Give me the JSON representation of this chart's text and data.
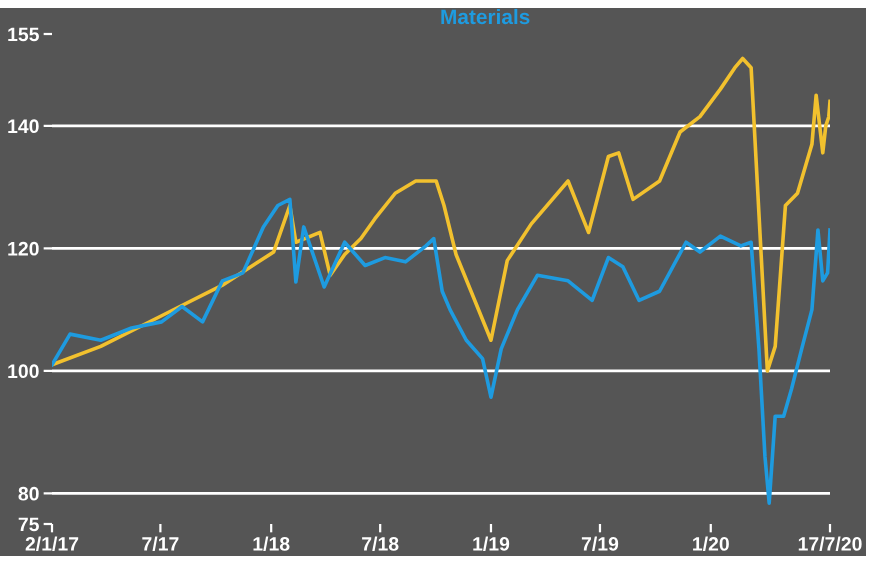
{
  "chart_data": {
    "type": "line",
    "legend": "top",
    "grid": "y",
    "line_style": "solid",
    "marker": "none",
    "xlim": [
      "2017-01-02",
      "2020-07-17"
    ],
    "xticks": [
      {
        "value": "2017-01-02",
        "label": "2/1/17"
      },
      {
        "value": "2017-07-01",
        "label": "7/17"
      },
      {
        "value": "2018-01-01",
        "label": "1/18"
      },
      {
        "value": "2018-07-01",
        "label": "7/18"
      },
      {
        "value": "2019-01-01",
        "label": "1/19"
      },
      {
        "value": "2019-07-01",
        "label": "7/19"
      },
      {
        "value": "2020-01-01",
        "label": "1/20"
      },
      {
        "value": "2020-07-17",
        "label": "17/7/20"
      }
    ],
    "ylim": [
      75,
      155
    ],
    "yticks": [
      75,
      80,
      100,
      120,
      140,
      155
    ],
    "series": [
      {
        "color": "#f2c12e",
        "x": [
          "2017-01-02",
          "2017-03-24",
          "2017-07-03",
          "2017-10-12",
          "2018-01-05",
          "2018-02-01",
          "2018-02-11",
          "2018-03-23",
          "2018-04-09",
          "2018-05-03",
          "2018-05-30",
          "2018-06-22",
          "2018-07-26",
          "2018-08-29",
          "2018-10-02",
          "2018-10-15",
          "2018-11-04",
          "2019-01-01",
          "2019-01-28",
          "2019-03-09",
          "2019-05-09",
          "2019-06-12",
          "2019-07-15",
          "2019-08-01",
          "2019-08-25",
          "2019-10-08",
          "2019-11-11",
          "2019-12-14",
          "2020-01-17",
          "2020-02-10",
          "2020-02-23",
          "2020-03-08",
          "2020-04-04",
          "2020-04-17",
          "2020-05-04",
          "2020-05-24",
          "2020-06-17",
          "2020-06-24",
          "2020-07-05",
          "2020-07-10",
          "2020-07-15",
          "2020-07-17"
        ],
        "values": [
          101,
          104,
          109,
          114,
          119.4,
          127,
          121,
          122.6,
          115.6,
          119,
          121.6,
          124.8,
          129,
          131,
          131,
          127,
          119,
          105,
          118,
          124,
          131,
          122.6,
          135,
          135.6,
          128,
          131,
          139,
          141.5,
          146,
          149.5,
          151,
          149.5,
          100,
          104,
          127,
          129,
          137,
          145,
          135.6,
          140,
          141.5,
          144
        ]
      },
      {
        "name": "Materials",
        "color": "#1e9be0",
        "x": [
          "2017-01-02",
          "2017-02-01",
          "2017-03-24",
          "2017-05-14",
          "2017-07-03",
          "2017-08-06",
          "2017-09-09",
          "2017-10-12",
          "2017-11-15",
          "2017-12-19",
          "2018-01-12",
          "2018-02-01",
          "2018-02-11",
          "2018-02-24",
          "2018-03-30",
          "2018-05-03",
          "2018-06-06",
          "2018-07-09",
          "2018-08-12",
          "2018-09-15",
          "2018-09-28",
          "2018-10-12",
          "2018-10-25",
          "2018-11-21",
          "2018-12-18",
          "2019-01-01",
          "2019-01-18",
          "2019-02-14",
          "2019-03-19",
          "2019-05-09",
          "2019-06-18",
          "2019-07-15",
          "2019-08-08",
          "2019-09-04",
          "2019-10-08",
          "2019-11-21",
          "2019-12-14",
          "2020-01-17",
          "2020-02-20",
          "2020-03-08",
          "2020-03-21",
          "2020-03-31",
          "2020-04-07",
          "2020-04-17",
          "2020-05-01",
          "2020-05-14",
          "2020-05-31",
          "2020-06-17",
          "2020-06-27",
          "2020-07-05",
          "2020-07-13",
          "2020-07-17"
        ],
        "values": [
          101,
          106,
          105,
          107,
          108,
          110.5,
          108,
          114.7,
          116,
          123.5,
          127,
          128,
          114.5,
          123.5,
          113.7,
          121,
          117.2,
          118.5,
          117.8,
          120.4,
          121.6,
          113,
          110,
          105,
          102,
          95.7,
          103.6,
          110,
          115.6,
          114.7,
          111.5,
          118.5,
          117,
          111.5,
          113,
          121,
          119.4,
          122,
          120.4,
          121,
          103.6,
          86,
          78.4,
          92.6,
          92.6,
          97,
          103.6,
          110,
          123,
          114.7,
          116,
          123
        ]
      }
    ]
  }
}
